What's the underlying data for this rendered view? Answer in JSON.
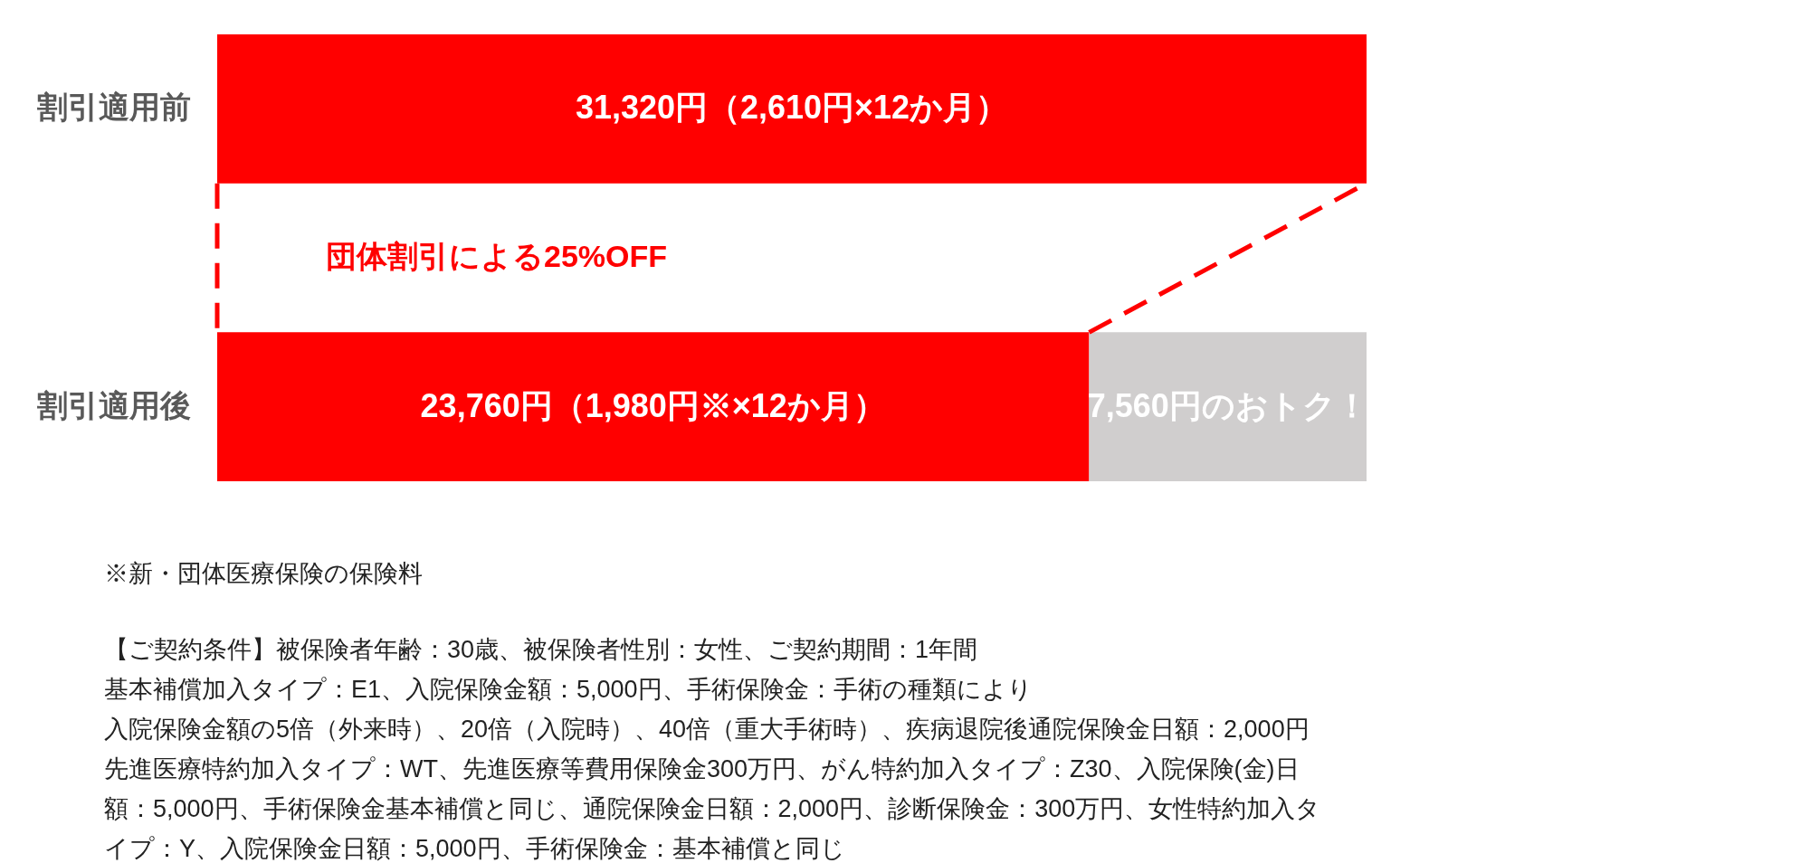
{
  "chart_data": {
    "type": "bar",
    "orientation": "horizontal",
    "stacked": true,
    "categories": [
      "割引適用前",
      "割引適用後"
    ],
    "series": [
      {
        "color": "#ff0000",
        "values": [
          31320,
          23760
        ],
        "value_labels": [
          "31,320円（2,610円×12か月）",
          "23,760円（1,980円※×12か月）"
        ]
      },
      {
        "color": "#d0cece",
        "values": [
          null,
          7560
        ],
        "value_labels": [
          null,
          "7,560円のおトク！"
        ]
      }
    ],
    "tick_labels": "y",
    "annotations": [
      "団体割引による25%OFF",
      "※新・団体医療保険の保険料",
      "【ご契約条件】被保険者年齢：30歳、被保険者性別：女性、ご契約期間：1年間",
      "基本補償加入タイプ：E1、入院保険金額：5,000円、手術保険金：手術の種類により",
      "入院保険金額の5倍（外来時）、20倍（入院時）、40倍（重大手術時）、疾病退院後通院保険金日額：2,000円",
      "先進医療特約加入タイプ：WT、先進医療等費用保険金300万円、がん特約加入タイプ：Z30、入院保険(金)日",
      "額：5,000円、手術保険金基本補償と同じ、通院保険金日額：2,000円、診断保険金：300万円、女性特約加入タ",
      "イプ：Y、入院保険金日額：5,000円、手術保険金：基本補償と同じ"
    ]
  }
}
